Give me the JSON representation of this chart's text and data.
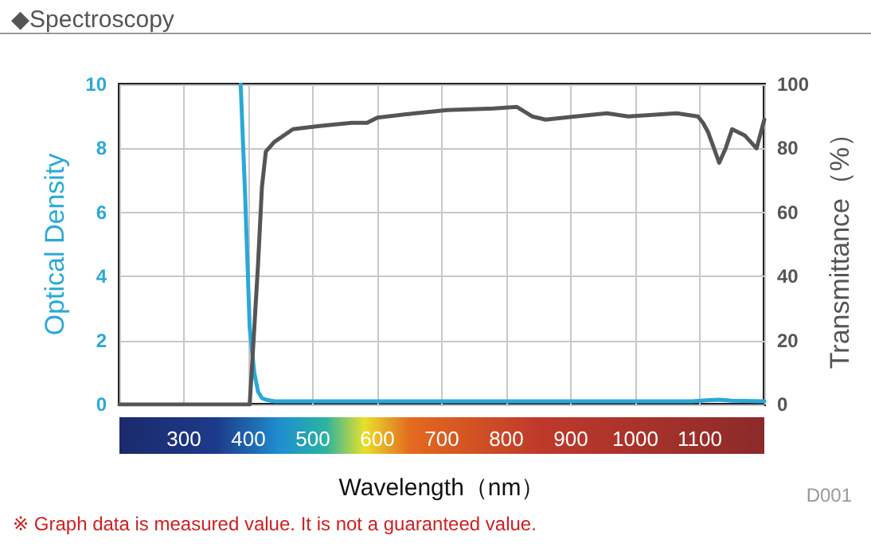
{
  "chart_data": {
    "type": "line",
    "title": "◆Spectroscopy",
    "xlabel": "Wavelength（nm）",
    "ylabel": "Optical Density",
    "y2label": "Transmittance（%）",
    "xlim": [
      200,
      1200
    ],
    "xticks": [
      {
        "value": 200,
        "label": null
      },
      300,
      400,
      500,
      600,
      700,
      800,
      900,
      1000,
      1100,
      {
        "value": 1200,
        "label": null
      }
    ],
    "ylim": [
      0,
      10
    ],
    "yticks": [
      0,
      2,
      4,
      6,
      8,
      10
    ],
    "y2lim": [
      0,
      100
    ],
    "y2ticks": [
      0,
      20,
      40,
      60,
      80,
      100
    ],
    "grid": true,
    "marker": "none",
    "line_style": "solid",
    "series": [
      {
        "color": "#29a9d8",
        "x": [
          388,
          395,
          402,
          409,
          415,
          421,
          427,
          440,
          500,
          600,
          700,
          800,
          900,
          1000,
          1088,
          1110,
          1130,
          1150,
          1200
        ],
        "values": [
          10,
          6.5,
          2.4,
          1,
          0.4,
          0.2,
          0.15,
          0.1,
          0.1,
          0.1,
          0.1,
          0.1,
          0.1,
          0.1,
          0.1,
          0.13,
          0.15,
          0.12,
          0.1
        ]
      },
      {
        "color": "#555555",
        "axis": "y2",
        "x": [
          200,
          300,
          402,
          408,
          415,
          421,
          427,
          440,
          469,
          510,
          560,
          584,
          600,
          659,
          708,
          780,
          816,
          824,
          840,
          861,
          907,
          956,
          989,
          1064,
          1097,
          1105,
          1113,
          1122,
          1130,
          1140,
          1150,
          1170,
          1188,
          1200
        ],
        "values": [
          0,
          0,
          0,
          20,
          44,
          68,
          79,
          82,
          86,
          87,
          88,
          88,
          89.6,
          91,
          92,
          92.5,
          93,
          92,
          90,
          89,
          90,
          91,
          90,
          91,
          90,
          88,
          85,
          80,
          75.5,
          80,
          86,
          84,
          80,
          89
        ]
      }
    ],
    "annotations": [
      "D001",
      "※ Graph data is measured value. It is not a guaranteed value."
    ]
  }
}
